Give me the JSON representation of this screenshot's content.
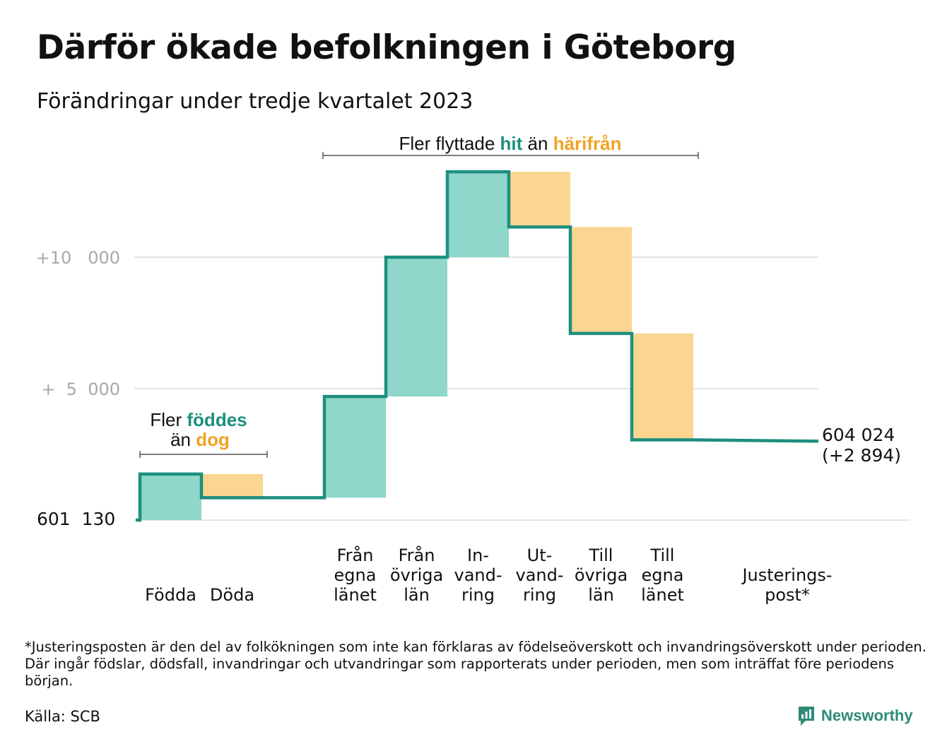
{
  "title": "Därför ökade befolkningen i Göteborg",
  "subtitle": "Förändringar under tredje kvartalet 2023",
  "annotations": {
    "migration": {
      "prefix": "Fler flyttade",
      "in_word": "hit",
      "middle": "än",
      "out_word": "härifrån"
    },
    "births": {
      "line1_prefix": "Fler",
      "line1_word": "föddes",
      "line2_prefix": "än",
      "line2_word": "dog"
    }
  },
  "start_label": "601  130",
  "end_label": {
    "line1": "604 024",
    "line2": "(+2 894)"
  },
  "footnote": "*Justeringsposten är den del av folkökningen som inte kan förklaras av födelseöverskott och invandringsöverskott under perioden. Där ingår födslar, dödsfall, invandringar och utvandringar som rapporterats under perioden, men som inträffat före periodens början.",
  "source": "Källa: SCB",
  "brand": "Newsworthy",
  "colors": {
    "increase": "#8fd6cb",
    "decrease": "#fad690",
    "line": "#1d8f7e",
    "in_text": "#1d8f7e",
    "out_text": "#f0a324",
    "grid": "#e4e4e4",
    "tick_text": "#a8a8a8"
  },
  "chart_data": {
    "type": "waterfall",
    "start_value": 601130,
    "end_value": 604024,
    "net_change": 2894,
    "y_ticks": [
      {
        "value": 10000,
        "label": "+10   000"
      },
      {
        "value": 5000,
        "label": "+  5  000"
      }
    ],
    "steps": [
      {
        "label_lines": [
          "Födda"
        ],
        "change": 1750,
        "kind": "increase"
      },
      {
        "label_lines": [
          "Döda"
        ],
        "change": -900,
        "kind": "decrease"
      },
      {
        "label_lines": [],
        "change": 0,
        "kind": "gap"
      },
      {
        "label_lines": [
          "Från",
          "egna",
          "länet"
        ],
        "change": 3850,
        "kind": "increase"
      },
      {
        "label_lines": [
          "Från",
          "övriga",
          "län"
        ],
        "change": 5300,
        "kind": "increase"
      },
      {
        "label_lines": [
          "In-",
          "vand-",
          "ring"
        ],
        "change": 3250,
        "kind": "increase"
      },
      {
        "label_lines": [
          "Ut-",
          "vand-",
          "ring"
        ],
        "change": -2100,
        "kind": "decrease"
      },
      {
        "label_lines": [
          "Till",
          "övriga",
          "län"
        ],
        "change": -4050,
        "kind": "decrease"
      },
      {
        "label_lines": [
          "Till",
          "egna",
          "länet"
        ],
        "change": -4050,
        "kind": "decrease"
      },
      {
        "label_lines": [
          "Justerings-",
          "post*"
        ],
        "change": -50,
        "kind": "adjustment"
      }
    ]
  }
}
